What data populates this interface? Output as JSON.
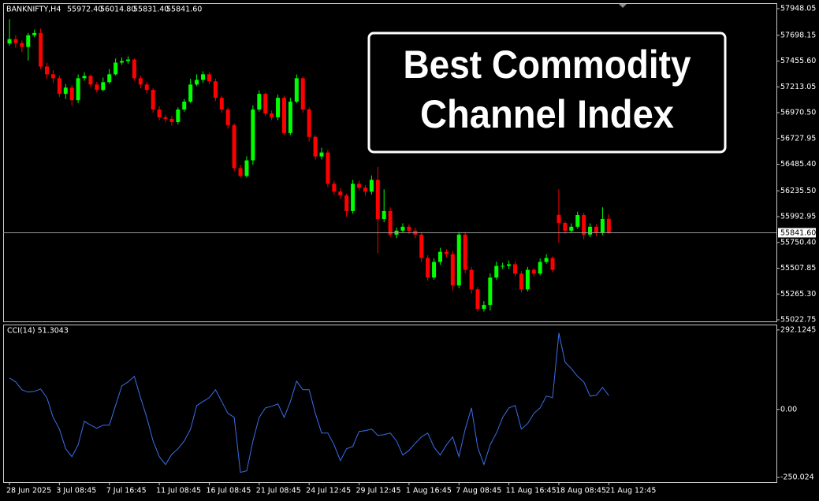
{
  "chart_data": [
    {
      "type": "candlestick",
      "title": "BANKNIFTY,H4",
      "last_bar_labels": [
        "55972.40",
        "56014.80",
        "55831.40",
        "55841.60"
      ],
      "annotation_lines": [
        "Best Commodity",
        "Channel Index"
      ],
      "up_color": "#00ff00",
      "down_color": "#ff0000",
      "open": [
        57620,
        57662,
        57625,
        57588,
        57698,
        57720,
        57404,
        57331,
        57294,
        57147,
        57206,
        57088,
        57294,
        57316,
        57235,
        57184,
        57257,
        57331,
        57441,
        57456,
        57470,
        57294,
        57235,
        57184,
        57000,
        56927,
        56912,
        56882,
        57000,
        57074,
        57235,
        57279,
        57331,
        57265,
        57110,
        57000,
        56853,
        56449,
        56375,
        56522,
        57000,
        57147,
        56963,
        56927,
        57110,
        56779,
        57074,
        57294,
        57000,
        56743,
        56559,
        56596,
        56302,
        56228,
        56192,
        56045,
        56302,
        56265,
        56228,
        56339,
        55971,
        56045,
        55824,
        55861,
        55898,
        55861,
        55824,
        55604,
        55420,
        55567,
        55662,
        55640,
        55346,
        55824,
        55493,
        55309,
        55126,
        55163,
        55420,
        55530,
        55530,
        55545,
        55457,
        55309,
        55493,
        55457,
        55567,
        55604,
        56010,
        55934,
        55861,
        55898,
        56008,
        55824,
        55898,
        55839,
        55972.4
      ],
      "high": [
        57850,
        57700,
        57650,
        57720,
        57750,
        57760,
        57440,
        57370,
        57320,
        57240,
        57230,
        57330,
        57350,
        57330,
        57260,
        57300,
        57380,
        57480,
        57490,
        57500,
        57480,
        57320,
        57260,
        57200,
        57030,
        56950,
        56940,
        57020,
        57100,
        57290,
        57330,
        57360,
        57350,
        57290,
        57130,
        57020,
        56870,
        56480,
        56560,
        57040,
        57180,
        57160,
        56990,
        57140,
        57130,
        57110,
        57330,
        57310,
        57020,
        56760,
        56640,
        56620,
        56330,
        56260,
        56210,
        56340,
        56330,
        56290,
        56380,
        56460,
        56250,
        56080,
        55890,
        55930,
        55920,
        55890,
        55850,
        55630,
        55600,
        55700,
        55690,
        55670,
        55850,
        55850,
        55520,
        55330,
        55200,
        55460,
        55570,
        55560,
        55580,
        55570,
        55480,
        55520,
        55510,
        55600,
        55640,
        55620,
        56250,
        55950,
        55930,
        56040,
        56030,
        55930,
        55920,
        56080,
        56014.8
      ],
      "low": [
        57600,
        57580,
        57540,
        57460,
        57680,
        57380,
        57290,
        57250,
        57120,
        57100,
        57040,
        57060,
        57270,
        57210,
        57160,
        57170,
        57240,
        57320,
        57420,
        57430,
        57270,
        57200,
        57150,
        56970,
        56900,
        56880,
        56850,
        56860,
        56980,
        57060,
        57220,
        57250,
        57240,
        57080,
        56970,
        56820,
        56420,
        56360,
        56360,
        56480,
        56980,
        56940,
        56900,
        56900,
        56760,
        56760,
        57060,
        56970,
        56700,
        56530,
        56530,
        56270,
        56200,
        56160,
        55990,
        56020,
        56240,
        56190,
        56200,
        55650,
        55940,
        55800,
        55790,
        55840,
        55830,
        55790,
        55570,
        55390,
        55400,
        55540,
        55610,
        55300,
        55320,
        55460,
        55270,
        55100,
        55100,
        55110,
        55400,
        55500,
        55500,
        55430,
        55280,
        55290,
        55430,
        55440,
        55550,
        55470,
        55750,
        55830,
        55840,
        55880,
        55780,
        55800,
        55810,
        55820,
        55831.4
      ],
      "close": [
        57662,
        57625,
        57588,
        57698,
        57720,
        57404,
        57331,
        57294,
        57147,
        57206,
        57088,
        57294,
        57316,
        57235,
        57184,
        57257,
        57331,
        57441,
        57456,
        57470,
        57294,
        57235,
        57184,
        57000,
        56927,
        56912,
        56882,
        57000,
        57074,
        57235,
        57279,
        57331,
        57265,
        57110,
        57000,
        56853,
        56449,
        56375,
        56522,
        57000,
        57147,
        56963,
        56927,
        57110,
        56779,
        57074,
        57294,
        57000,
        56743,
        56559,
        56596,
        56302,
        56228,
        56192,
        56045,
        56302,
        56265,
        56228,
        56339,
        55971,
        56045,
        55824,
        55861,
        55898,
        55861,
        55824,
        55604,
        55420,
        55567,
        55662,
        55640,
        55346,
        55824,
        55493,
        55309,
        55126,
        55163,
        55420,
        55530,
        55530,
        55545,
        55457,
        55309,
        55493,
        55457,
        55567,
        55604,
        55493,
        55934,
        55861,
        55898,
        56008,
        55824,
        55898,
        55839,
        55971,
        55841.6
      ],
      "current_price": {
        "value": 55841.6,
        "label": "55841.60"
      },
      "ylim": [
        55008,
        58000
      ],
      "yticks": [
        57948.05,
        57698.15,
        {
          "value": 57455.6,
          "label": "57455.60"
        },
        57213.05,
        {
          "value": 56970.5,
          "label": "56970.50"
        },
        56727.95,
        {
          "value": 56485.4,
          "label": "56485.40"
        },
        {
          "value": 56235.5,
          "label": "56235.50"
        },
        55992.95,
        {
          "value": 55750.4,
          "label": "55750.40"
        },
        55507.85,
        {
          "value": 55265.3,
          "label": "55265.30"
        },
        55022.75
      ],
      "grid": false
    },
    {
      "type": "line",
      "title": "CCI(14) 51.3043",
      "color": "#3a6fe8",
      "categories": [
        "28 Jun 2025",
        null,
        null,
        null,
        null,
        null,
        null,
        null,
        "3 Jul 08:45",
        null,
        null,
        null,
        null,
        null,
        null,
        null,
        "7 Jul 16:45",
        null,
        null,
        null,
        null,
        null,
        null,
        null,
        "11 Jul 08:45",
        null,
        null,
        null,
        null,
        null,
        null,
        null,
        "16 Jul 08:45",
        null,
        null,
        null,
        null,
        null,
        null,
        null,
        "21 Jul 08:45",
        null,
        null,
        null,
        null,
        null,
        null,
        null,
        "24 Jul 12:45",
        null,
        null,
        null,
        null,
        null,
        null,
        null,
        "29 Jul 12:45",
        null,
        null,
        null,
        null,
        null,
        null,
        null,
        "1 Aug 16:45",
        null,
        null,
        null,
        null,
        null,
        null,
        null,
        "7 Aug 08:45",
        null,
        null,
        null,
        null,
        null,
        null,
        null,
        "11 Aug 16:45",
        null,
        null,
        null,
        null,
        null,
        null,
        null,
        "18 Aug 08:45",
        null,
        null,
        null,
        null,
        null,
        null,
        null,
        "21 Aug 12:45"
      ],
      "values": [
        115.6,
        101.2,
        72.3,
        63.6,
        66.5,
        75.1,
        43.4,
        -28.9,
        -72.3,
        -144.5,
        -173.4,
        -130.1,
        -43.4,
        -57.8,
        -69.4,
        -57.8,
        -57.8,
        14.5,
        86.7,
        101.2,
        121.4,
        43.4,
        -28.9,
        -115.6,
        -173.4,
        -202.3,
        -164.8,
        -144.5,
        -115.6,
        -72.3,
        14.5,
        28.9,
        43.4,
        72.3,
        28.9,
        -14.5,
        -28.9,
        -231.2,
        -225.4,
        -115.6,
        -28.9,
        5.8,
        11.6,
        20.2,
        -28.9,
        28.9,
        104.0,
        72.3,
        72.3,
        -14.5,
        -86.7,
        -86.7,
        -130.1,
        -187.9,
        -144.5,
        -135.9,
        -80.9,
        -78.0,
        -72.3,
        -95.4,
        -92.5,
        -86.7,
        -115.6,
        -167.6,
        -150.3,
        -124.3,
        -101.2,
        -86.7,
        -138.7,
        -167.6,
        -130.1,
        -101.2,
        -173.4,
        -72.3,
        5.8,
        -138.7,
        -202.3,
        -130.1,
        -86.7,
        -28.9,
        5.8,
        14.5,
        -72.3,
        -52.0,
        -14.5,
        5.8,
        49.1,
        43.4,
        280.3,
        173.4,
        150.3,
        121.4,
        101.2,
        49.1,
        52.0,
        80.9,
        51.3043
      ],
      "ylim": [
        -267,
        312
      ],
      "yticks": [
        292.1245,
        {
          "value": 0,
          "label": "0.00"
        },
        -250.024
      ],
      "grid": false
    }
  ]
}
